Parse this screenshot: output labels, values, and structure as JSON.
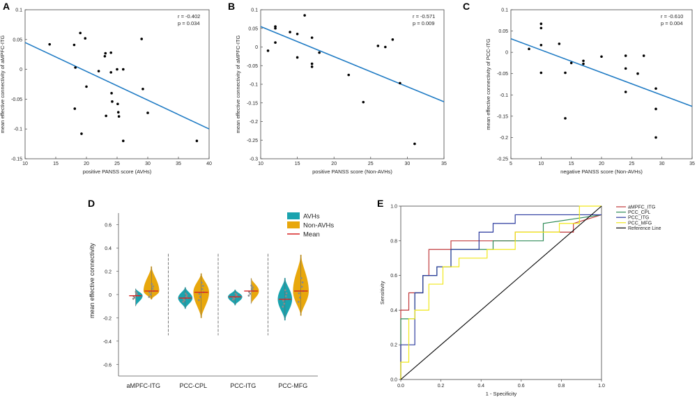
{
  "chart_data": [
    {
      "panel": "A",
      "type": "scatter",
      "xlabel": "positive PANSS score (AVHs)",
      "ylabel": "mean effective connectivity of aMPFC-ITG",
      "xlim": [
        10,
        40
      ],
      "ylim": [
        -0.15,
        0.1
      ],
      "xticks": [
        10,
        15,
        20,
        25,
        30,
        35,
        40
      ],
      "yticks": [
        -0.15,
        -0.1,
        -0.05,
        0,
        0.05,
        0.1
      ],
      "annotation": {
        "r": "r = -0.402",
        "p": "p = 0.034"
      },
      "fit": {
        "x": [
          10,
          40
        ],
        "y": [
          0.045,
          -0.1
        ]
      },
      "points": [
        [
          14,
          0.042
        ],
        [
          18,
          0.041
        ],
        [
          18.2,
          0.003
        ],
        [
          18.1,
          -0.066
        ],
        [
          19,
          0.061
        ],
        [
          19.2,
          -0.108
        ],
        [
          19.8,
          0.052
        ],
        [
          20,
          -0.029
        ],
        [
          22,
          -0.003
        ],
        [
          23,
          0.022
        ],
        [
          23.1,
          0.027
        ],
        [
          23.2,
          -0.078
        ],
        [
          24,
          0.028
        ],
        [
          24,
          -0.005
        ],
        [
          24.1,
          -0.04
        ],
        [
          24.2,
          -0.054
        ],
        [
          25,
          0
        ],
        [
          25.1,
          -0.058
        ],
        [
          25.2,
          -0.072
        ],
        [
          25.3,
          -0.079
        ],
        [
          26,
          0
        ],
        [
          26,
          -0.12
        ],
        [
          29,
          0.051
        ],
        [
          29.2,
          -0.033
        ],
        [
          30,
          -0.073
        ],
        [
          38,
          -0.12
        ]
      ]
    },
    {
      "panel": "B",
      "type": "scatter",
      "xlabel": "positive PANSS score (Non-AVHs)",
      "ylabel": "mean effective connectivity of aMPFC-ITG",
      "xlim": [
        10,
        35
      ],
      "ylim": [
        -0.3,
        0.1
      ],
      "xticks": [
        10,
        15,
        20,
        25,
        30,
        35
      ],
      "yticks": [
        -0.3,
        -0.25,
        -0.2,
        -0.15,
        -0.1,
        -0.05,
        0,
        0.05,
        0.1
      ],
      "annotation": {
        "r": "r = -0.571",
        "p": "p = 0.009"
      },
      "fit": {
        "x": [
          10,
          35
        ],
        "y": [
          0.055,
          -0.147
        ]
      },
      "points": [
        [
          11,
          -0.01
        ],
        [
          12,
          0.055
        ],
        [
          12,
          0.05
        ],
        [
          12,
          0.012
        ],
        [
          14,
          0.04
        ],
        [
          15,
          0.035
        ],
        [
          15,
          -0.028
        ],
        [
          16,
          0.085
        ],
        [
          17,
          0.025
        ],
        [
          17,
          -0.045
        ],
        [
          17,
          -0.053
        ],
        [
          18,
          -0.015
        ],
        [
          22,
          -0.075
        ],
        [
          24,
          -0.148
        ],
        [
          26,
          0.003
        ],
        [
          27,
          0
        ],
        [
          28,
          0.02
        ],
        [
          29,
          -0.097
        ],
        [
          31,
          -0.26
        ]
      ]
    },
    {
      "panel": "C",
      "type": "scatter",
      "xlabel": "negative PANSS score (Non-AVHs)",
      "ylabel": "mean effective connectivity of PCC-ITG",
      "xlim": [
        5,
        35
      ],
      "ylim": [
        -0.25,
        0.1
      ],
      "xticks": [
        5,
        10,
        15,
        20,
        25,
        30,
        35
      ],
      "yticks": [
        -0.25,
        -0.2,
        -0.15,
        -0.1,
        -0.05,
        0,
        0.05,
        0.1
      ],
      "annotation": {
        "r": "r = -0.610",
        "p": "p = 0.004"
      },
      "fit": {
        "x": [
          5,
          35
        ],
        "y": [
          0.032,
          -0.127
        ]
      },
      "points": [
        [
          8,
          0.008
        ],
        [
          10,
          0.067
        ],
        [
          10,
          0.057
        ],
        [
          10,
          0.017
        ],
        [
          10,
          -0.048
        ],
        [
          13,
          0.02
        ],
        [
          14,
          -0.048
        ],
        [
          14,
          -0.155
        ],
        [
          15,
          -0.025
        ],
        [
          17,
          -0.02
        ],
        [
          17,
          -0.027
        ],
        [
          20,
          -0.01
        ],
        [
          24,
          -0.008
        ],
        [
          24,
          -0.038
        ],
        [
          24,
          -0.093
        ],
        [
          26,
          -0.05
        ],
        [
          27,
          -0.008
        ],
        [
          29,
          -0.085
        ],
        [
          29,
          -0.133
        ],
        [
          29,
          -0.2
        ]
      ]
    },
    {
      "panel": "D",
      "type": "violin",
      "ylabel": "mean effective connectivity",
      "ylim": [
        -0.7,
        0.7
      ],
      "yticks": [
        -0.6,
        -0.4,
        -0.2,
        0,
        0.2,
        0.4,
        0.6
      ],
      "categories": [
        "aMPFC-ITG",
        "PCC-CPL",
        "PCC-ITG",
        "PCC-MFG"
      ],
      "legend": [
        "AVHs",
        "Non-AVHs",
        "Mean"
      ],
      "colors": {
        "AVHs": "#1aa3ae",
        "Non-AVHs": "#e8a70c",
        "Mean": "#d62020"
      },
      "series": [
        {
          "name": "AVHs",
          "mean": [
            -0.01,
            -0.03,
            -0.02,
            -0.04
          ],
          "min": [
            -0.1,
            -0.12,
            -0.09,
            -0.22
          ],
          "max": [
            0.05,
            0.06,
            0.04,
            0.14
          ]
        },
        {
          "name": "Non-AVHs",
          "mean": [
            0.03,
            0.02,
            0.03,
            0.03
          ],
          "min": [
            -0.04,
            -0.2,
            -0.08,
            -0.18
          ],
          "max": [
            0.24,
            0.18,
            0.14,
            0.34
          ]
        }
      ]
    },
    {
      "panel": "E",
      "type": "line",
      "xlabel": "1 - Specificity",
      "ylabel": "Sensitivity",
      "xlim": [
        0,
        1
      ],
      "ylim": [
        0,
        1
      ],
      "ticks": [
        "0.0",
        "0.2",
        "0.4",
        "0.6",
        "0.8",
        "1.0"
      ],
      "series": [
        {
          "name": "aMPFC_ITG",
          "color": "#c0393b",
          "x": [
            0,
            0,
            0.04,
            0.04,
            0.11,
            0.11,
            0.14,
            0.14,
            0.25,
            0.25,
            0.57,
            0.57,
            0.86,
            0.86,
            1
          ],
          "y": [
            0,
            0.4,
            0.4,
            0.5,
            0.5,
            0.6,
            0.6,
            0.75,
            0.75,
            0.8,
            0.8,
            0.85,
            0.85,
            0.9,
            0.95
          ]
        },
        {
          "name": "PCC_CPL",
          "color": "#2e8b57",
          "x": [
            0,
            0,
            0.07,
            0.07,
            0.11,
            0.11,
            0.18,
            0.18,
            0.25,
            0.25,
            0.46,
            0.46,
            0.71,
            0.71,
            1
          ],
          "y": [
            0,
            0.35,
            0.35,
            0.5,
            0.5,
            0.6,
            0.6,
            0.65,
            0.65,
            0.75,
            0.75,
            0.8,
            0.8,
            0.9,
            0.95
          ]
        },
        {
          "name": "PCC_ITG",
          "color": "#2b3a9e",
          "x": [
            0,
            0,
            0.07,
            0.07,
            0.11,
            0.11,
            0.18,
            0.18,
            0.25,
            0.25,
            0.39,
            0.39,
            0.46,
            0.46,
            0.57,
            0.57,
            0.86,
            0.86,
            1
          ],
          "y": [
            0,
            0.2,
            0.2,
            0.5,
            0.5,
            0.6,
            0.6,
            0.65,
            0.65,
            0.75,
            0.75,
            0.85,
            0.85,
            0.9,
            0.9,
            0.95,
            0.95,
            0.95,
            0.95
          ]
        },
        {
          "name": "PCC_MFG",
          "color": "#f0e81a",
          "x": [
            0,
            0,
            0.04,
            0.04,
            0.07,
            0.07,
            0.14,
            0.14,
            0.21,
            0.21,
            0.29,
            0.29,
            0.43,
            0.43,
            0.57,
            0.57,
            0.79,
            0.79,
            0.89,
            0.89,
            1
          ],
          "y": [
            0,
            0.1,
            0.1,
            0.35,
            0.35,
            0.4,
            0.4,
            0.55,
            0.55,
            0.65,
            0.65,
            0.7,
            0.7,
            0.75,
            0.75,
            0.85,
            0.85,
            0.9,
            0.9,
            1,
            1
          ]
        },
        {
          "name": "Reference Line",
          "color": "#000000",
          "x": [
            0,
            1
          ],
          "y": [
            0,
            1
          ]
        }
      ]
    }
  ]
}
